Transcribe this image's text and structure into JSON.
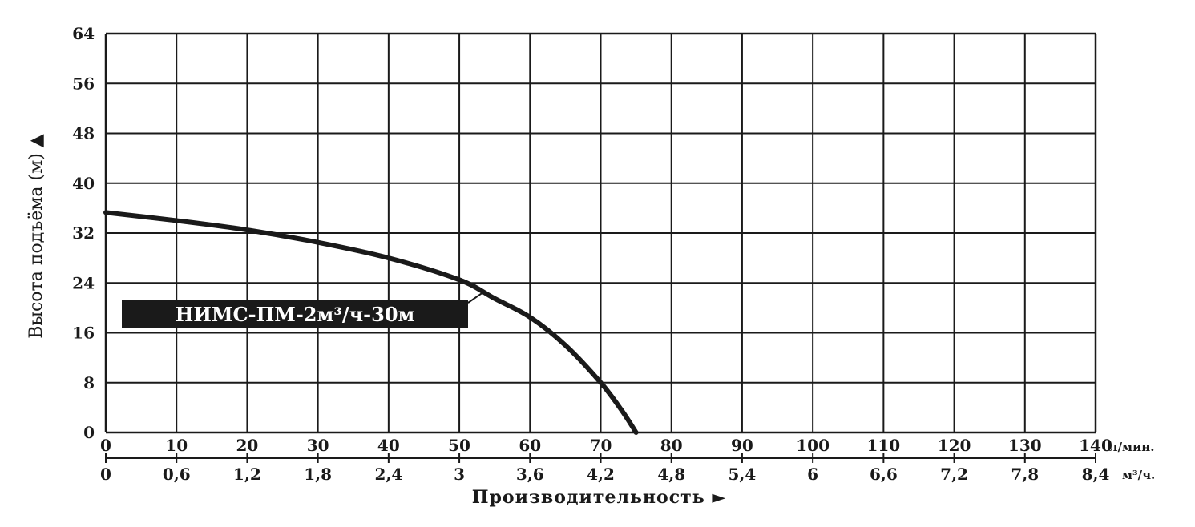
{
  "chart_data": {
    "type": "line",
    "title": "",
    "ylabel": "Высота подъёма (м) ▲",
    "xlabel": "Производительность ►",
    "ylim": [
      0,
      64
    ],
    "yticks": [
      "0",
      "8",
      "16",
      "24",
      "32",
      "40",
      "48",
      "56",
      "64"
    ],
    "x_lpm": {
      "unit": "л/мин.",
      "range": [
        0,
        140
      ],
      "ticks": [
        "0",
        "10",
        "20",
        "30",
        "40",
        "50",
        "60",
        "70",
        "80",
        "90",
        "100",
        "110",
        "120",
        "130",
        "140"
      ]
    },
    "x_m3h": {
      "unit": "м³/ч.",
      "ticks": [
        "0",
        "0,6",
        "1,2",
        "1,8",
        "2,4",
        "3",
        "3,6",
        "4,2",
        "4,8",
        "5,4",
        "6",
        "6,6",
        "7,2",
        "7,8",
        "8,4"
      ]
    },
    "grid": true,
    "series": [
      {
        "name": "НИМС-ПМ-2м³/ч-30м",
        "x": [
          0,
          10,
          20,
          30,
          40,
          50,
          55,
          60,
          65,
          70,
          73,
          75
        ],
        "y": [
          35.3,
          34,
          32.5,
          30.5,
          28,
          24.5,
          21.5,
          18.5,
          14,
          8,
          3.5,
          0
        ]
      }
    ],
    "colors": {
      "line": "#1a1a1a",
      "grid": "#1a1a1a",
      "label_bg": "#1a1a1a",
      "label_text": "#ffffff"
    }
  }
}
